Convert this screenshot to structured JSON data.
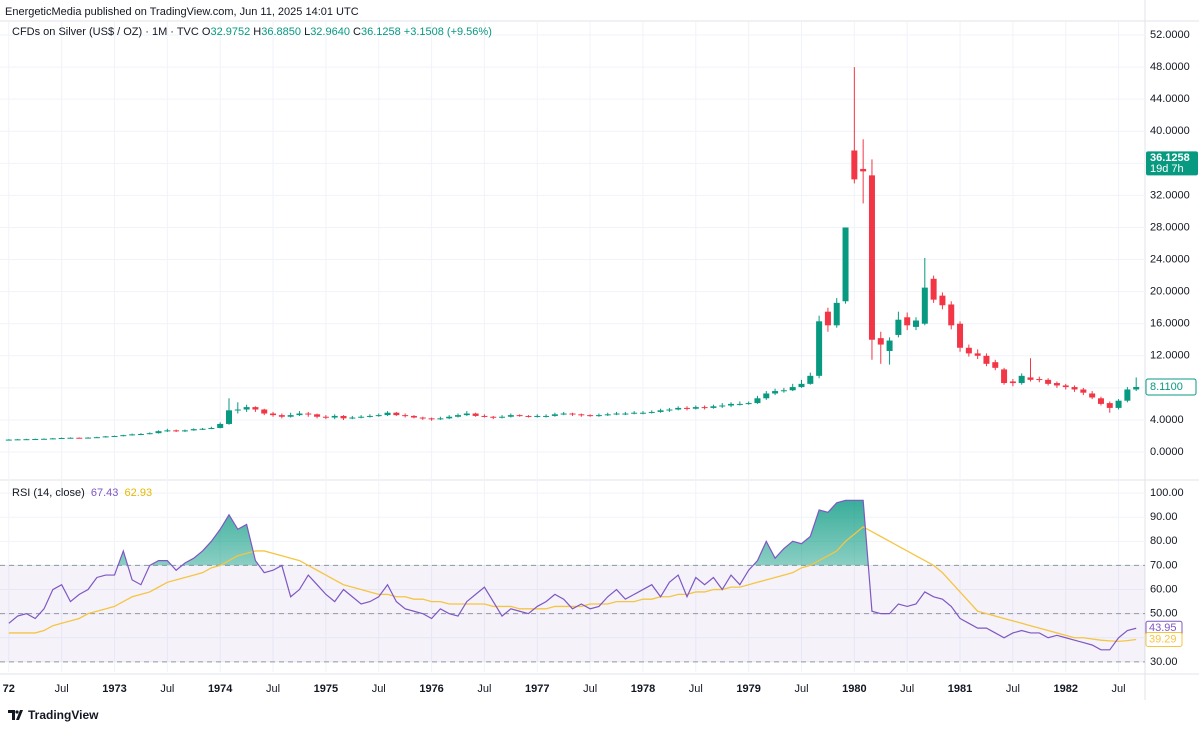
{
  "header": {
    "published": "EnergeticMedia published on TradingView.com, Jun 11, 2025 14:01 UTC"
  },
  "footer": {
    "brand": "TradingView"
  },
  "chart_data": [
    {
      "type": "candlestick",
      "title": "CFDs on Silver (US$ / OZ) · 1M · TVC",
      "ohlc": [
        {
          "key": "O",
          "value": "32.9752"
        },
        {
          "key": "H",
          "value": "36.8850"
        },
        {
          "key": "L",
          "value": "32.9640"
        },
        {
          "key": "C",
          "value": "36.1258"
        }
      ],
      "change": "+3.1508 (+9.56%)",
      "up_color": "#089981",
      "down_color": "#f23645",
      "grid": true,
      "xlim": [
        "1971-12",
        "1982-10"
      ],
      "xticks": [
        {
          "value": "1972-01",
          "label": "72"
        },
        {
          "value": "1972-07",
          "label": "Jul"
        },
        {
          "value": "1973-01",
          "label": "1973"
        },
        {
          "value": "1973-07",
          "label": "Jul"
        },
        {
          "value": "1974-01",
          "label": "1974"
        },
        {
          "value": "1974-07",
          "label": "Jul"
        },
        {
          "value": "1975-01",
          "label": "1975"
        },
        {
          "value": "1975-07",
          "label": "Jul"
        },
        {
          "value": "1976-01",
          "label": "1976"
        },
        {
          "value": "1976-07",
          "label": "Jul"
        },
        {
          "value": "1977-01",
          "label": "1977"
        },
        {
          "value": "1977-07",
          "label": "Jul"
        },
        {
          "value": "1978-01",
          "label": "1978"
        },
        {
          "value": "1978-07",
          "label": "Jul"
        },
        {
          "value": "1979-01",
          "label": "1979"
        },
        {
          "value": "1979-07",
          "label": "Jul"
        },
        {
          "value": "1980-01",
          "label": "1980"
        },
        {
          "value": "1980-07",
          "label": "Jul"
        },
        {
          "value": "1981-01",
          "label": "1981"
        },
        {
          "value": "1981-07",
          "label": "Jul"
        },
        {
          "value": "1982-01",
          "label": "1982"
        },
        {
          "value": "1982-07",
          "label": "Jul"
        }
      ],
      "ylim": [
        -3.24,
        53.25
      ],
      "yticks": [
        {
          "value": 0,
          "label": "0.0000"
        },
        {
          "value": 4,
          "label": "4.0000"
        },
        {
          "value": 8,
          "label": "8.0000"
        },
        {
          "value": 12,
          "label": "12.0000"
        },
        {
          "value": 16,
          "label": "16.0000"
        },
        {
          "value": 20,
          "label": "20.0000"
        },
        {
          "value": 24,
          "label": "24.0000"
        },
        {
          "value": 28,
          "label": "28.0000"
        },
        {
          "value": 32,
          "label": "32.0000"
        },
        {
          "value": 36,
          "label": "36.0000"
        },
        {
          "value": 40,
          "label": "40.0000"
        },
        {
          "value": 44,
          "label": "44.0000"
        },
        {
          "value": 48,
          "label": "48.0000"
        },
        {
          "value": 52,
          "label": "52.0000"
        }
      ],
      "last_price": 36.1258,
      "countdown": "19d 7h",
      "close_label": {
        "value": 8.11,
        "label": "8.1100"
      },
      "x": [
        "1972-01",
        "1972-02",
        "1972-03",
        "1972-04",
        "1972-05",
        "1972-06",
        "1972-07",
        "1972-08",
        "1972-09",
        "1972-10",
        "1972-11",
        "1972-12",
        "1973-01",
        "1973-02",
        "1973-03",
        "1973-04",
        "1973-05",
        "1973-06",
        "1973-07",
        "1973-08",
        "1973-09",
        "1973-10",
        "1973-11",
        "1973-12",
        "1974-01",
        "1974-02",
        "1974-03",
        "1974-04",
        "1974-05",
        "1974-06",
        "1974-07",
        "1974-08",
        "1974-09",
        "1974-10",
        "1974-11",
        "1974-12",
        "1975-01",
        "1975-02",
        "1975-03",
        "1975-04",
        "1975-05",
        "1975-06",
        "1975-07",
        "1975-08",
        "1975-09",
        "1975-10",
        "1975-11",
        "1975-12",
        "1976-01",
        "1976-02",
        "1976-03",
        "1976-04",
        "1976-05",
        "1976-06",
        "1976-07",
        "1976-08",
        "1976-09",
        "1976-10",
        "1976-11",
        "1976-12",
        "1977-01",
        "1977-02",
        "1977-03",
        "1977-04",
        "1977-05",
        "1977-06",
        "1977-07",
        "1977-08",
        "1977-09",
        "1977-10",
        "1977-11",
        "1977-12",
        "1978-01",
        "1978-02",
        "1978-03",
        "1978-04",
        "1978-05",
        "1978-06",
        "1978-07",
        "1978-08",
        "1978-09",
        "1978-10",
        "1978-11",
        "1978-12",
        "1979-01",
        "1979-02",
        "1979-03",
        "1979-04",
        "1979-05",
        "1979-06",
        "1979-07",
        "1979-08",
        "1979-09",
        "1979-10",
        "1979-11",
        "1979-12",
        "1980-01",
        "1980-02",
        "1980-03",
        "1980-04",
        "1980-05",
        "1980-06",
        "1980-07",
        "1980-08",
        "1980-09",
        "1980-10",
        "1980-11",
        "1980-12",
        "1981-01",
        "1981-02",
        "1981-03",
        "1981-04",
        "1981-05",
        "1981-06",
        "1981-07",
        "1981-08",
        "1981-09",
        "1981-10",
        "1981-11",
        "1981-12",
        "1982-01",
        "1982-02",
        "1982-03",
        "1982-04",
        "1982-05",
        "1982-06",
        "1982-07",
        "1982-08",
        "1982-09"
      ],
      "open": [
        1.5,
        1.55,
        1.58,
        1.6,
        1.62,
        1.65,
        1.7,
        1.75,
        1.78,
        1.75,
        1.8,
        1.85,
        1.95,
        2.0,
        2.1,
        2.2,
        2.25,
        2.35,
        2.6,
        2.7,
        2.6,
        2.7,
        2.85,
        2.9,
        3.0,
        3.5,
        5.2,
        5.3,
        5.6,
        5.3,
        4.8,
        4.6,
        4.4,
        4.6,
        4.8,
        4.7,
        4.4,
        4.3,
        4.5,
        4.2,
        4.3,
        4.4,
        4.5,
        4.6,
        4.9,
        4.6,
        4.5,
        4.3,
        4.2,
        4.1,
        4.2,
        4.4,
        4.6,
        4.8,
        4.5,
        4.4,
        4.3,
        4.4,
        4.6,
        4.5,
        4.4,
        4.5,
        4.5,
        4.7,
        4.8,
        4.7,
        4.6,
        4.5,
        4.6,
        4.7,
        4.8,
        4.8,
        4.9,
        4.9,
        5.0,
        5.2,
        5.3,
        5.5,
        5.4,
        5.6,
        5.5,
        5.7,
        5.8,
        6.0,
        6.0,
        6.1,
        6.7,
        7.3,
        7.6,
        7.7,
        8.1,
        8.5,
        9.5,
        17.5,
        15.8,
        18.8,
        37.6,
        35.3,
        34.5,
        14.2,
        12.6,
        14.6,
        16.8,
        15.6,
        16.0,
        21.6,
        19.5,
        18.4,
        16.0,
        13.0,
        12.3,
        12.0,
        11.2,
        10.3,
        8.8,
        8.6,
        9.3,
        9.1,
        9.0,
        8.6,
        8.3,
        8.1,
        7.8,
        7.3,
        6.7,
        6.1,
        5.5,
        6.4,
        7.8
      ],
      "high": [
        1.6,
        1.62,
        1.65,
        1.67,
        1.7,
        1.75,
        1.8,
        1.83,
        1.82,
        1.85,
        1.9,
        2.0,
        2.05,
        2.15,
        2.3,
        2.35,
        2.45,
        2.7,
        2.9,
        2.8,
        2.8,
        2.95,
        3.0,
        3.15,
        3.7,
        6.7,
        6.2,
        5.9,
        5.7,
        5.4,
        5.0,
        4.8,
        4.9,
        5.1,
        5.0,
        4.8,
        4.6,
        4.7,
        4.6,
        4.5,
        4.6,
        4.7,
        4.8,
        5.1,
        5.0,
        4.8,
        4.6,
        4.4,
        4.3,
        4.4,
        4.6,
        4.8,
        5.1,
        4.9,
        4.7,
        4.5,
        4.6,
        4.8,
        4.7,
        4.6,
        4.7,
        4.7,
        4.9,
        5.0,
        4.9,
        4.8,
        4.7,
        4.8,
        4.9,
        5.0,
        5.0,
        5.1,
        5.1,
        5.2,
        5.4,
        5.5,
        5.7,
        5.7,
        5.8,
        5.8,
        5.9,
        6.1,
        6.2,
        6.3,
        6.3,
        7.0,
        7.6,
        7.9,
        8.0,
        8.5,
        9.0,
        9.9,
        17.0,
        18.0,
        19.2,
        28.0,
        48.0,
        39.0,
        36.5,
        15.0,
        14.3,
        17.5,
        17.4,
        16.8,
        24.2,
        22.0,
        19.9,
        18.8,
        16.3,
        13.4,
        12.8,
        12.3,
        11.5,
        10.5,
        9.1,
        9.8,
        11.7,
        9.4,
        9.2,
        8.8,
        8.5,
        8.3,
        8.0,
        7.6,
        6.9,
        6.3,
        6.6,
        8.1,
        9.3
      ],
      "low": [
        1.45,
        1.5,
        1.53,
        1.56,
        1.58,
        1.6,
        1.65,
        1.7,
        1.7,
        1.7,
        1.75,
        1.8,
        1.9,
        1.95,
        2.05,
        2.1,
        2.2,
        2.3,
        2.5,
        2.5,
        2.5,
        2.65,
        2.75,
        2.85,
        2.95,
        3.4,
        4.8,
        5.0,
        5.0,
        4.6,
        4.4,
        4.2,
        4.3,
        4.5,
        4.4,
        4.2,
        4.1,
        4.1,
        4.0,
        4.1,
        4.2,
        4.3,
        4.4,
        4.5,
        4.5,
        4.3,
        4.2,
        4.0,
        3.9,
        4.0,
        4.1,
        4.3,
        4.5,
        4.4,
        4.3,
        4.1,
        4.2,
        4.3,
        4.4,
        4.3,
        4.3,
        4.3,
        4.4,
        4.6,
        4.5,
        4.4,
        4.4,
        4.4,
        4.5,
        4.6,
        4.6,
        4.7,
        4.7,
        4.8,
        4.9,
        5.0,
        5.2,
        5.2,
        5.3,
        5.3,
        5.4,
        5.5,
        5.6,
        5.8,
        5.9,
        6.0,
        6.5,
        7.1,
        7.4,
        7.6,
        8.0,
        8.4,
        9.2,
        15.0,
        15.5,
        18.5,
        33.5,
        31.0,
        11.5,
        11.0,
        10.9,
        14.3,
        15.2,
        15.2,
        15.8,
        18.6,
        17.8,
        15.3,
        12.5,
        11.9,
        11.6,
        10.7,
        10.2,
        8.4,
        8.2,
        8.4,
        8.8,
        8.7,
        8.3,
        8.0,
        7.8,
        7.5,
        7.1,
        6.6,
        5.8,
        4.9,
        5.3,
        6.2,
        7.6
      ],
      "close": [
        1.55,
        1.58,
        1.6,
        1.62,
        1.65,
        1.7,
        1.75,
        1.78,
        1.75,
        1.8,
        1.85,
        1.95,
        2.0,
        2.1,
        2.2,
        2.25,
        2.35,
        2.6,
        2.7,
        2.6,
        2.7,
        2.85,
        2.9,
        3.0,
        3.5,
        5.2,
        5.3,
        5.6,
        5.3,
        4.8,
        4.6,
        4.4,
        4.6,
        4.8,
        4.7,
        4.4,
        4.3,
        4.5,
        4.2,
        4.3,
        4.4,
        4.5,
        4.6,
        4.9,
        4.6,
        4.5,
        4.3,
        4.2,
        4.1,
        4.2,
        4.4,
        4.6,
        4.8,
        4.5,
        4.4,
        4.3,
        4.4,
        4.6,
        4.5,
        4.4,
        4.5,
        4.5,
        4.7,
        4.8,
        4.7,
        4.6,
        4.5,
        4.6,
        4.7,
        4.8,
        4.8,
        4.9,
        4.9,
        5.0,
        5.2,
        5.3,
        5.5,
        5.4,
        5.6,
        5.5,
        5.7,
        5.8,
        6.0,
        6.0,
        6.1,
        6.7,
        7.3,
        7.6,
        7.7,
        8.1,
        8.5,
        9.5,
        16.3,
        15.8,
        18.6,
        28.0,
        34.0,
        35.0,
        14.0,
        13.4,
        13.9,
        16.5,
        15.8,
        16.4,
        20.5,
        19.0,
        18.3,
        15.8,
        13.0,
        12.3,
        12.0,
        11.0,
        10.5,
        8.6,
        8.6,
        9.5,
        9.0,
        9.0,
        8.5,
        8.3,
        8.1,
        7.8,
        7.4,
        6.8,
        6.0,
        5.5,
        6.4,
        7.8,
        8.11
      ]
    },
    {
      "type": "line",
      "title": "RSI (14, close)",
      "grid": true,
      "ylim": [
        25.8,
        104.6
      ],
      "yticks": [
        {
          "value": 30,
          "label": "30.00"
        },
        {
          "value": 40,
          "label": "40.00"
        },
        {
          "value": 50,
          "label": "50.00"
        },
        {
          "value": 60,
          "label": "60.00"
        },
        {
          "value": 70,
          "label": "70.00"
        },
        {
          "value": 80,
          "label": "80.00"
        },
        {
          "value": 90,
          "label": "90.00"
        },
        {
          "value": 100,
          "label": "100.00"
        }
      ],
      "bands": [
        70,
        50,
        30
      ],
      "band_color": "#7e57c2",
      "overbought_color": "#089981",
      "series": [
        {
          "color": "#7e57c2",
          "legend_value": 67.43,
          "last_label": 43.95,
          "values": [
            46,
            49,
            50,
            48,
            52,
            60,
            62,
            55,
            58,
            60,
            65,
            66,
            66,
            76,
            64,
            62,
            70,
            72,
            72,
            68,
            71,
            73,
            76,
            80,
            85,
            91,
            85,
            87,
            72,
            67,
            68,
            70,
            57,
            60,
            66,
            62,
            58,
            55,
            60,
            57,
            54,
            55,
            57,
            62,
            55,
            52,
            51,
            50,
            48,
            52,
            50,
            49,
            55,
            58,
            61,
            55,
            49,
            52,
            51,
            50,
            53,
            55,
            58,
            56,
            52,
            54,
            52,
            53,
            57,
            60,
            56,
            58,
            60,
            62,
            57,
            63,
            66,
            57,
            65,
            62,
            65,
            60,
            66,
            62,
            68,
            72,
            80,
            73,
            77,
            80,
            79,
            82,
            93,
            92,
            96,
            97,
            97,
            97,
            51,
            50,
            50,
            54,
            53,
            54,
            59,
            57,
            56,
            53,
            48,
            46,
            44,
            44,
            42,
            40,
            42,
            43,
            42,
            42,
            40,
            41,
            40,
            39,
            38,
            37,
            35,
            35,
            40,
            43,
            43.95
          ]
        },
        {
          "color": "#f5c542",
          "legend_value": 62.93,
          "last_label": 39.29,
          "values": [
            42,
            42,
            42,
            42,
            43,
            45,
            46,
            47,
            48,
            50,
            51,
            52,
            53,
            55,
            57,
            58,
            59,
            61,
            63,
            64,
            65,
            66,
            67,
            69,
            70,
            72,
            74,
            75,
            76,
            76,
            75,
            74,
            73,
            72,
            70,
            68,
            66,
            64,
            62,
            61,
            60,
            59,
            58,
            58,
            57,
            57,
            56,
            56,
            55,
            55,
            54,
            54,
            54,
            54,
            54,
            53,
            53,
            53,
            52,
            52,
            52,
            52,
            53,
            53,
            53,
            53,
            54,
            54,
            54,
            55,
            55,
            55,
            56,
            56,
            57,
            57,
            58,
            58,
            59,
            59,
            60,
            60,
            61,
            61,
            62,
            63,
            64,
            65,
            66,
            67,
            69,
            70,
            72,
            74,
            76,
            80,
            83,
            86,
            84,
            82,
            80,
            78,
            76,
            74,
            72,
            70,
            67,
            63,
            59,
            55,
            51,
            50,
            49,
            48,
            47,
            46,
            45,
            44,
            43,
            42,
            41,
            40,
            40,
            39.5,
            39,
            38.7,
            38.5,
            38.8,
            39.29
          ]
        }
      ]
    }
  ]
}
